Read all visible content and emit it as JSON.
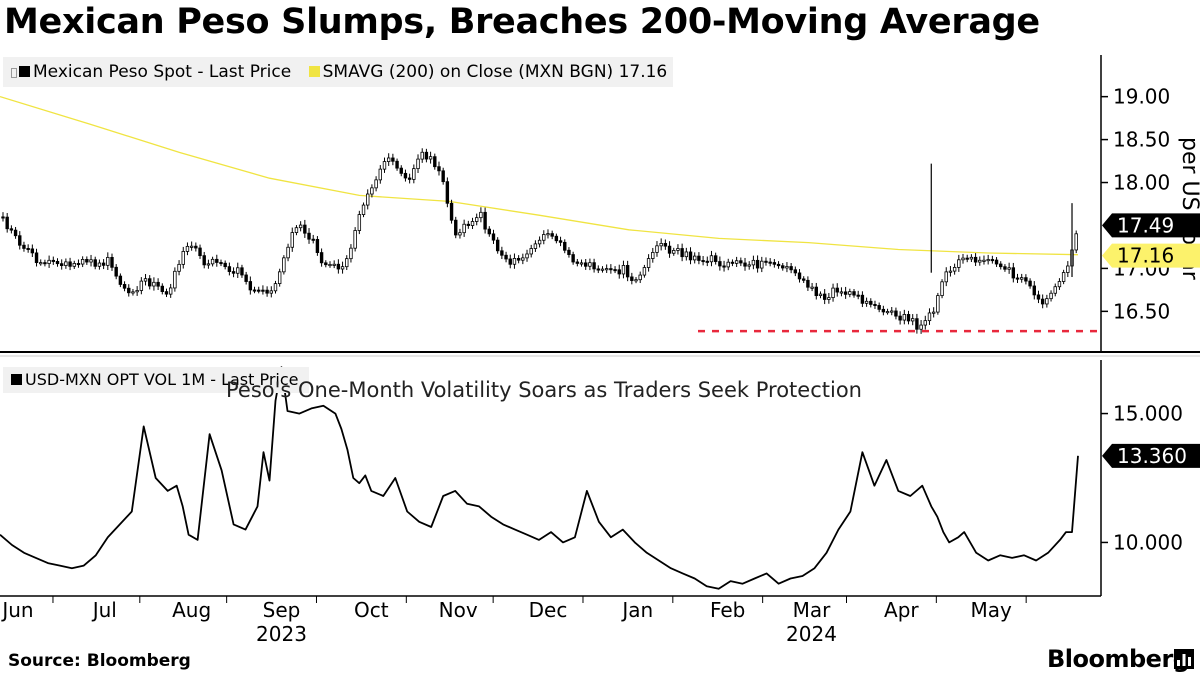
{
  "header": {
    "title": "Mexican Peso Slumps, Breaches 200-Moving Average"
  },
  "colors": {
    "price": "#000000",
    "sma": "#f0e442",
    "sma_badge": "#fcf26b",
    "support_line": "#e8283c",
    "panel_bg": "#f1f1f1"
  },
  "footer": {
    "source": "Source: Bloomberg",
    "brand": "Bloomberg"
  },
  "chart_data": [
    {
      "type": "candlestick",
      "title": "Mexican Peso Slumps, Breaches 200-Moving Average",
      "ylabel": "per US dollar",
      "ylim": [
        16.05,
        19.45
      ],
      "yticks": [
        "19.00",
        "18.50",
        "18.00",
        "17.00",
        "16.50"
      ],
      "legend": [
        {
          "label": "Mexican Peso Spot - Last Price",
          "color": "#000000"
        },
        {
          "label": "SMAVG (200)  on Close (MXN BGN) 17.16",
          "color": "#f0e442"
        }
      ],
      "last_labels": [
        {
          "label": "17.49",
          "value": 17.49,
          "style": "dark"
        },
        {
          "label": "17.16",
          "value": 17.16,
          "style": "yellow"
        }
      ],
      "support_level": 16.27,
      "price_series": {
        "name": "Mexican Peso Spot - Last Price",
        "t": [
          0,
          4,
          8,
          12,
          16,
          20,
          24,
          28,
          32,
          36,
          40,
          44,
          48,
          52,
          56,
          60,
          64,
          68,
          72,
          76,
          80,
          84,
          88,
          92,
          96,
          100,
          104,
          108,
          112,
          116,
          120,
          124,
          128,
          132,
          136,
          140,
          144,
          148,
          152,
          156,
          160,
          164,
          168,
          172,
          176,
          180,
          184,
          188,
          192,
          196,
          200,
          204,
          208,
          212,
          216,
          220,
          224,
          228,
          232,
          236,
          240,
          244,
          248,
          252,
          256,
          260,
          264,
          268,
          272,
          276,
          280,
          284,
          288,
          292,
          296,
          300,
          304,
          308,
          312,
          316,
          320,
          324,
          328,
          332,
          336,
          340,
          344,
          348,
          352,
          356,
          360
        ],
        "values": [
          17.6,
          17.42,
          17.25,
          17.1,
          17.05,
          17.07,
          17.05,
          17.1,
          17.03,
          17.08,
          16.82,
          16.72,
          16.85,
          16.78,
          16.7,
          17.1,
          17.3,
          17.06,
          17.12,
          17.0,
          16.95,
          16.78,
          16.7,
          16.82,
          17.25,
          17.55,
          17.35,
          17.05,
          17.02,
          17.1,
          17.65,
          17.9,
          18.28,
          18.2,
          18.0,
          18.35,
          18.25,
          18.0,
          17.4,
          17.5,
          17.65,
          17.35,
          17.1,
          17.07,
          17.2,
          17.35,
          17.38,
          17.25,
          17.05,
          17.05,
          17.0,
          16.95,
          17.0,
          16.85,
          17.05,
          17.25,
          17.22,
          17.18,
          17.12,
          17.12,
          17.08,
          17.05,
          17.08,
          17.05,
          17.05,
          17.02,
          16.97,
          16.88,
          16.72,
          16.68,
          16.78,
          16.72,
          16.62,
          16.55,
          16.5,
          16.45,
          16.4,
          16.28,
          16.55,
          17.0,
          17.05,
          17.15,
          17.05,
          17.08,
          16.98,
          16.9,
          16.8,
          16.62,
          16.75,
          17.0,
          17.49
        ]
      },
      "sma_series": {
        "name": "SMAVG (200)",
        "t": [
          0,
          30,
          60,
          90,
          120,
          150,
          180,
          210,
          240,
          270,
          300,
          330,
          360
        ],
        "values": [
          19.0,
          18.68,
          18.35,
          18.05,
          17.85,
          17.78,
          17.62,
          17.45,
          17.35,
          17.3,
          17.22,
          17.18,
          17.16
        ]
      },
      "spikes": [
        {
          "t": 311,
          "high": 18.22,
          "low": 16.95
        },
        {
          "t": 358,
          "high": 17.76,
          "low": 16.9
        }
      ]
    },
    {
      "type": "line",
      "title": "Peso's One-Month Volatility Soars as Traders Seek Protection",
      "ylim": [
        8.0,
        17.0
      ],
      "yticks": [
        "15.000",
        "10.000"
      ],
      "legend": [
        {
          "label": "USD-MXN OPT VOL 1M - Last Price",
          "color": "#000000"
        }
      ],
      "last_label": {
        "label": "13.360",
        "value": 13.36
      },
      "series": {
        "name": "USD-MXN OPT VOL 1M - Last Price",
        "t": [
          0,
          4,
          8,
          12,
          16,
          20,
          24,
          28,
          32,
          36,
          40,
          44,
          48,
          52,
          56,
          59,
          61,
          63,
          66,
          70,
          74,
          78,
          82,
          86,
          88,
          90,
          92,
          94,
          96,
          100,
          104,
          108,
          112,
          114,
          116,
          118,
          120,
          122,
          124,
          128,
          132,
          136,
          140,
          144,
          148,
          152,
          156,
          160,
          164,
          168,
          172,
          176,
          180,
          184,
          188,
          192,
          196,
          200,
          204,
          208,
          212,
          216,
          220,
          224,
          228,
          232,
          236,
          240,
          244,
          248,
          252,
          256,
          260,
          264,
          268,
          272,
          276,
          280,
          284,
          288,
          292,
          296,
          300,
          304,
          308,
          311,
          313,
          315,
          317,
          320,
          322,
          326,
          330,
          334,
          338,
          342,
          346,
          350,
          354,
          356,
          358,
          360
        ],
        "values": [
          10.3,
          9.9,
          9.6,
          9.4,
          9.2,
          9.1,
          9.0,
          9.1,
          9.5,
          10.2,
          10.7,
          11.2,
          14.5,
          12.5,
          12.0,
          12.2,
          11.4,
          10.3,
          10.1,
          14.2,
          12.8,
          10.7,
          10.5,
          11.4,
          13.5,
          12.4,
          15.5,
          16.8,
          15.1,
          15.0,
          15.2,
          15.3,
          15.0,
          14.4,
          13.6,
          12.5,
          12.3,
          12.6,
          12.0,
          11.8,
          12.5,
          11.2,
          10.8,
          10.6,
          11.8,
          12.0,
          11.5,
          11.4,
          11.0,
          10.7,
          10.5,
          10.3,
          10.1,
          10.4,
          10.0,
          10.2,
          12.0,
          10.8,
          10.2,
          10.5,
          10.0,
          9.6,
          9.3,
          9.0,
          8.8,
          8.6,
          8.3,
          8.2,
          8.5,
          8.4,
          8.6,
          8.8,
          8.4,
          8.6,
          8.7,
          9.0,
          9.6,
          10.5,
          11.2,
          13.5,
          12.2,
          13.2,
          12.0,
          11.8,
          12.2,
          11.4,
          11.0,
          10.4,
          10.0,
          10.2,
          10.4,
          9.6,
          9.3,
          9.5,
          9.4,
          9.5,
          9.3,
          9.6,
          10.1,
          10.4,
          10.4,
          13.36
        ]
      }
    }
  ],
  "xaxis": {
    "months": [
      {
        "label": "Jun",
        "t": 6
      },
      {
        "label": "Jul",
        "t": 35
      },
      {
        "label": "Aug",
        "t": 64
      },
      {
        "label": "Sep",
        "t": 94
      },
      {
        "label": "Oct",
        "t": 124
      },
      {
        "label": "Nov",
        "t": 153
      },
      {
        "label": "Dec",
        "t": 183
      },
      {
        "label": "Jan",
        "t": 213
      },
      {
        "label": "Feb",
        "t": 243
      },
      {
        "label": "Mar",
        "t": 271
      },
      {
        "label": "Apr",
        "t": 301
      },
      {
        "label": "May",
        "t": 331
      }
    ],
    "years": [
      {
        "label": "2023",
        "t": 94
      },
      {
        "label": "2024",
        "t": 271
      }
    ]
  }
}
